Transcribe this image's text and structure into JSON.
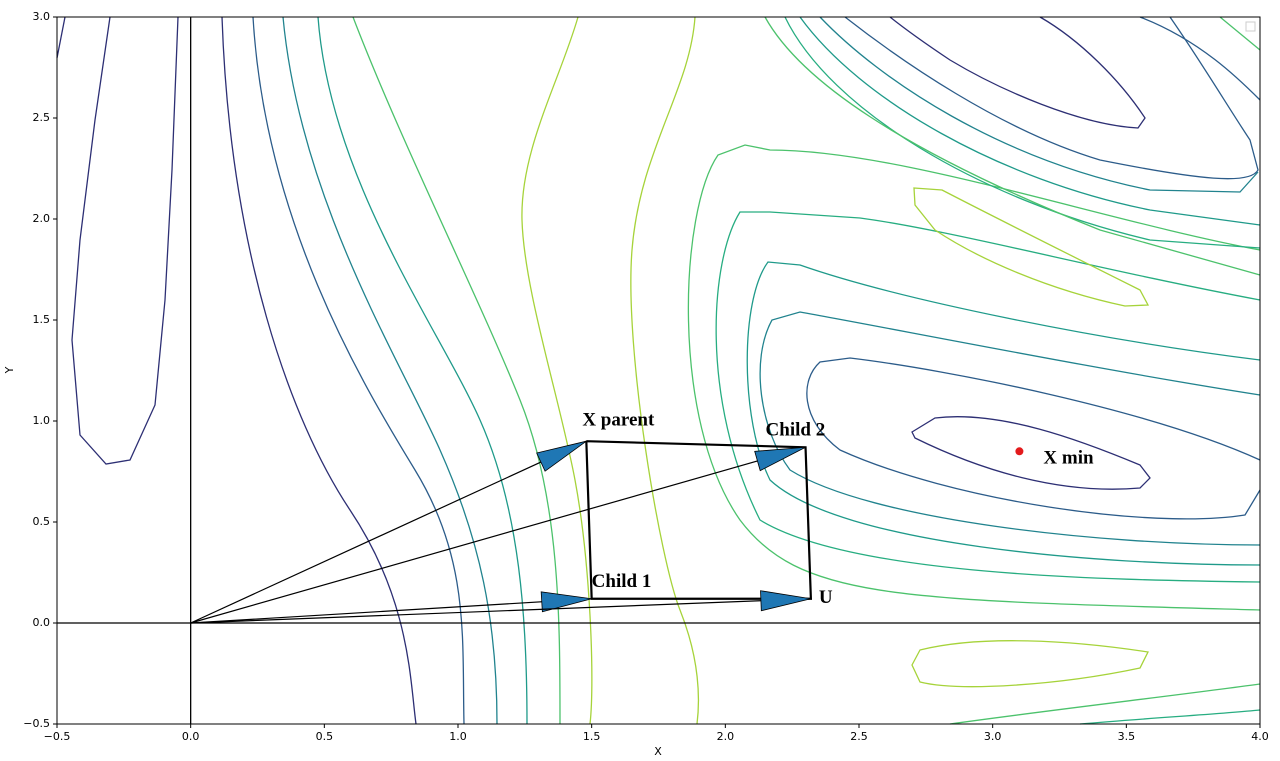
{
  "chart_data": {
    "type": "vector",
    "xlabel": "X",
    "ylabel": "Y",
    "xlim": [
      -0.5,
      4.0
    ],
    "ylim": [
      -0.5,
      3.0
    ],
    "xticks": [
      {
        "value": -0.5,
        "label": "−0.5"
      },
      {
        "value": 0,
        "label": "0.0"
      },
      0.5,
      {
        "value": 1,
        "label": "1.0"
      },
      1.5,
      {
        "value": 2,
        "label": "2.0"
      },
      2.5,
      {
        "value": 3,
        "label": "3.0"
      },
      3.5,
      {
        "value": 4,
        "label": "4.0"
      }
    ],
    "yticks": [
      {
        "value": -0.5,
        "label": "−0.5"
      },
      {
        "value": 0,
        "label": "0.0"
      },
      0.5,
      {
        "value": 1,
        "label": "1.0"
      },
      1.5,
      {
        "value": 2,
        "label": "2.0"
      },
      2.5,
      {
        "value": 3,
        "label": "3.0"
      }
    ],
    "arrow_color": "#1f77b4",
    "vectors": [
      {
        "label": "X parent",
        "x": 1.48,
        "y": 0.9
      },
      {
        "label": "Child 2",
        "x": 2.3,
        "y": 0.87
      },
      {
        "label": "Child 1",
        "x": 1.5,
        "y": 0.12
      },
      {
        "label": "U",
        "x": 2.32,
        "y": 0.12
      }
    ],
    "points": [
      {
        "label": "X min",
        "x": 3.1,
        "y": 0.85,
        "color": "#e31a1c"
      }
    ]
  }
}
